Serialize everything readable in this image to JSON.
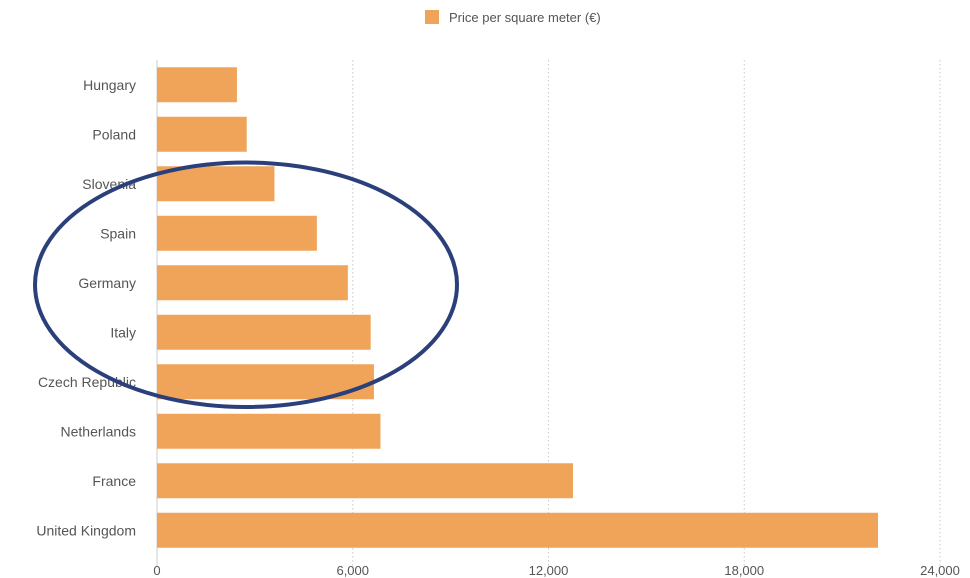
{
  "chart_data": {
    "type": "bar",
    "orientation": "horizontal",
    "categories": [
      "Hungary",
      "Poland",
      "Slovenia",
      "Spain",
      "Germany",
      "Italy",
      "Czech Republic",
      "Netherlands",
      "France",
      "United Kingdom"
    ],
    "series": [
      {
        "name": "Price per square meter (€)",
        "values": [
          2450,
          2750,
          3600,
          4900,
          5850,
          6550,
          6650,
          6850,
          12750,
          22100
        ]
      }
    ],
    "xlim": [
      0,
      24000
    ],
    "xticks": [
      0,
      6000,
      12000,
      18000,
      24000
    ],
    "xtick_labels": [
      "0",
      "6,000",
      "12,000",
      "18,000",
      "24,000"
    ],
    "grid": "vertical dotted",
    "legend": "top-center",
    "colors": {
      "bar": "#F0A45A",
      "grid": "#c9c9c9",
      "text": "#555555",
      "annotation": "#2b3f7a"
    },
    "annotations": [
      {
        "type": "ellipse",
        "around_categories": [
          "Spain",
          "Germany",
          "Italy"
        ]
      }
    ]
  }
}
